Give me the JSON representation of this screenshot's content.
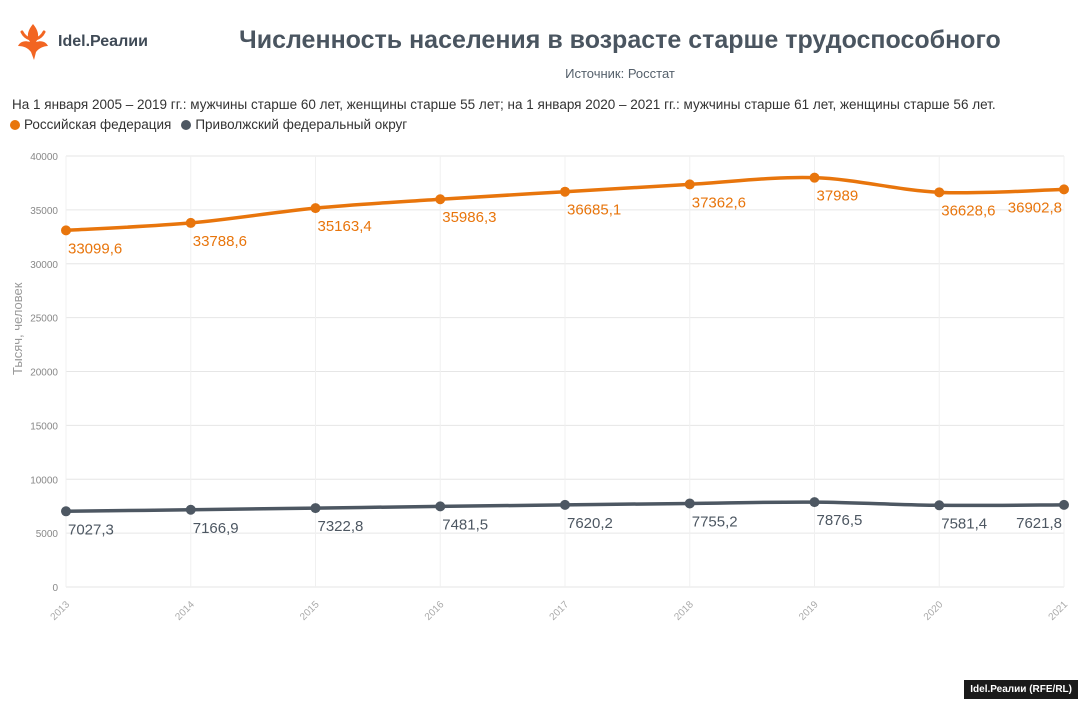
{
  "header": {
    "logo_text": "Idel.Реалии",
    "title": "Численность населения в возрасте старше трудоспособного",
    "source": "Источник: Росстат",
    "subtitle": "На 1 января 2005 – 2019 гг.: мужчины старше 60 лет, женщины старше 55 лет; на 1 января 2020 – 2021 гг.: мужчины старше 61 лет, женщины старше 56 лет."
  },
  "colors": {
    "series1": "#e8750c",
    "series2": "#4d5762",
    "logo": "#f26522"
  },
  "credit": "Idel.Реалии (RFE/RL)",
  "chart_data": {
    "type": "line",
    "title": "Численность населения в возрасте старше трудоспособного",
    "xlabel": "",
    "ylabel": "Тысяч, человек",
    "x": [
      "2013",
      "2014",
      "2015",
      "2016",
      "2017",
      "2018",
      "2019",
      "2020",
      "2021"
    ],
    "ylim": [
      0,
      40000
    ],
    "yticks": [
      0,
      5000,
      10000,
      15000,
      20000,
      25000,
      30000,
      35000,
      40000
    ],
    "grid": true,
    "legend": "top-left",
    "series": [
      {
        "name": "Российская федерация",
        "values": [
          33099.6,
          33788.6,
          35163.4,
          35986.3,
          36685.1,
          37362.6,
          37989,
          36628.6,
          36902.8
        ],
        "labels": [
          "33099,6",
          "33788,6",
          "35163,4",
          "35986,3",
          "36685,1",
          "37362,6",
          "37989",
          "36628,6",
          "36902,8"
        ]
      },
      {
        "name": "Приволжский федеральный округ",
        "values": [
          7027.3,
          7166.9,
          7322.8,
          7481.5,
          7620.2,
          7755.2,
          7876.5,
          7581.4,
          7621.8
        ],
        "labels": [
          "7027,3",
          "7166,9",
          "7322,8",
          "7481,5",
          "7620,2",
          "7755,2",
          "7876,5",
          "7581,4",
          "7621,8"
        ]
      }
    ]
  }
}
